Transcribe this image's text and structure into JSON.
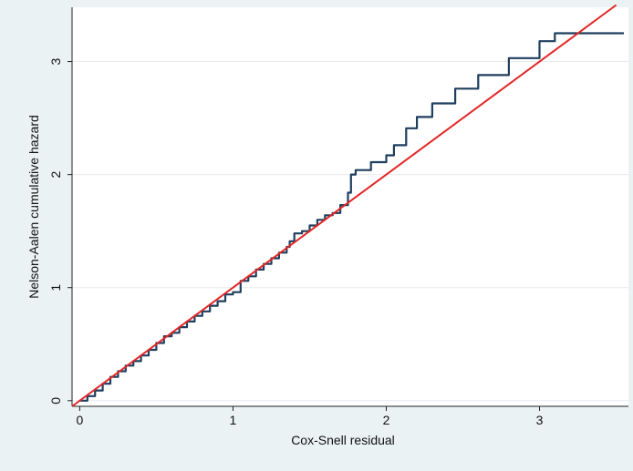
{
  "chart_data": {
    "type": "line",
    "title": "",
    "xlabel": "Cox-Snell residual",
    "ylabel": "Nelson-Aalen cumulative hazard",
    "xlim": [
      -0.05,
      3.58
    ],
    "ylim": [
      -0.05,
      3.48
    ],
    "x_ticks": [
      {
        "value": 0,
        "label": "0"
      },
      {
        "value": 1,
        "label": "1"
      },
      {
        "value": 2,
        "label": "2"
      },
      {
        "value": 3,
        "label": "3"
      }
    ],
    "y_ticks": [
      {
        "value": 0,
        "label": "0"
      },
      {
        "value": 1,
        "label": "1"
      },
      {
        "value": 2,
        "label": "2"
      },
      {
        "value": 3,
        "label": "3"
      }
    ],
    "grid": "horizontal",
    "legend": "none",
    "series": [
      {
        "color": "#1f3f5f",
        "style": "step",
        "x": [
          0.0,
          0.05,
          0.1,
          0.15,
          0.2,
          0.25,
          0.3,
          0.35,
          0.4,
          0.45,
          0.5,
          0.55,
          0.6,
          0.65,
          0.7,
          0.75,
          0.8,
          0.85,
          0.9,
          0.95,
          1.0,
          1.05,
          1.1,
          1.15,
          1.2,
          1.25,
          1.3,
          1.35,
          1.37,
          1.4,
          1.45,
          1.5,
          1.55,
          1.6,
          1.65,
          1.7,
          1.75,
          1.77,
          1.8,
          1.9,
          2.0,
          2.05,
          2.13,
          2.2,
          2.3,
          2.45,
          2.6,
          2.8,
          3.0,
          3.1,
          3.55
        ],
        "values": [
          0.0,
          0.04,
          0.09,
          0.15,
          0.21,
          0.26,
          0.31,
          0.35,
          0.4,
          0.45,
          0.51,
          0.57,
          0.6,
          0.65,
          0.7,
          0.75,
          0.79,
          0.84,
          0.88,
          0.94,
          0.96,
          1.06,
          1.1,
          1.16,
          1.21,
          1.26,
          1.31,
          1.36,
          1.41,
          1.48,
          1.5,
          1.55,
          1.6,
          1.64,
          1.66,
          1.73,
          1.84,
          2.0,
          2.04,
          2.11,
          2.17,
          2.26,
          2.41,
          2.51,
          2.63,
          2.76,
          2.88,
          3.03,
          3.18,
          3.25,
          3.25
        ]
      },
      {
        "color": "#e32626",
        "style": "line",
        "x": [
          -0.05,
          3.5
        ],
        "values": [
          -0.05,
          3.5
        ]
      }
    ]
  }
}
